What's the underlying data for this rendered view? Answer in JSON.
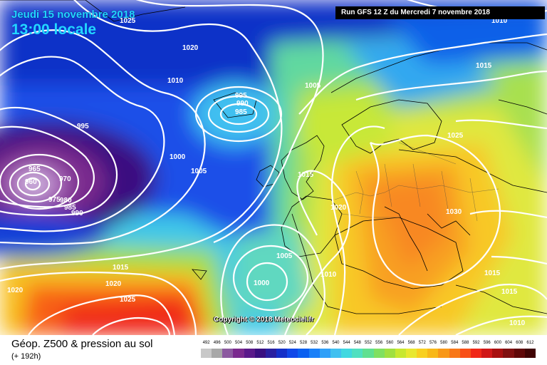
{
  "header": {
    "date": "Jeudi 15 novembre 2018",
    "time": "13:00 locale",
    "run": "Run GFS 12 Z du Mercredi 7 novembre 2018"
  },
  "copyright": "Copyright © 2018 Meteociel.fr",
  "footer": {
    "title": "Géop. Z500 & pression au sol",
    "subtitle": "(+ 192h)"
  },
  "scale": {
    "labels": [
      "492",
      "496",
      "500",
      "504",
      "508",
      "512",
      "516",
      "520",
      "524",
      "528",
      "532",
      "536",
      "540",
      "544",
      "548",
      "552",
      "556",
      "560",
      "564",
      "568",
      "572",
      "576",
      "580",
      "584",
      "588",
      "592",
      "596",
      "600",
      "604",
      "608",
      "612"
    ],
    "colors": [
      "#c8c8c8",
      "#a8a8a8",
      "#8c5aa0",
      "#7a2a8e",
      "#5a1a8a",
      "#3a1080",
      "#2a20a0",
      "#1530c8",
      "#1048e8",
      "#0a60f0",
      "#1a80f8",
      "#30a0f8",
      "#40c0f0",
      "#40d8e0",
      "#50e0c0",
      "#60e090",
      "#80e060",
      "#a0e040",
      "#c8e830",
      "#e8e830",
      "#f8d020",
      "#f8b818",
      "#f89818",
      "#f87818",
      "#f85018",
      "#f02818",
      "#d01818",
      "#a81010",
      "#801010",
      "#600808",
      "#400404"
    ]
  },
  "isobars": {
    "labels": [
      "1025",
      "1010",
      "1020",
      "1010",
      "1005",
      "995",
      "990",
      "985",
      "995",
      "1000",
      "1005",
      "965",
      "970",
      "960",
      "975",
      "980",
      "985",
      "990",
      "1015",
      "1025",
      "1015",
      "1020",
      "1025",
      "1030",
      "1015",
      "1005",
      "1000",
      "1010",
      "1020",
      "1015",
      "1010",
      "1015",
      "1020",
      "1025",
      "1020",
      "1010"
    ]
  }
}
